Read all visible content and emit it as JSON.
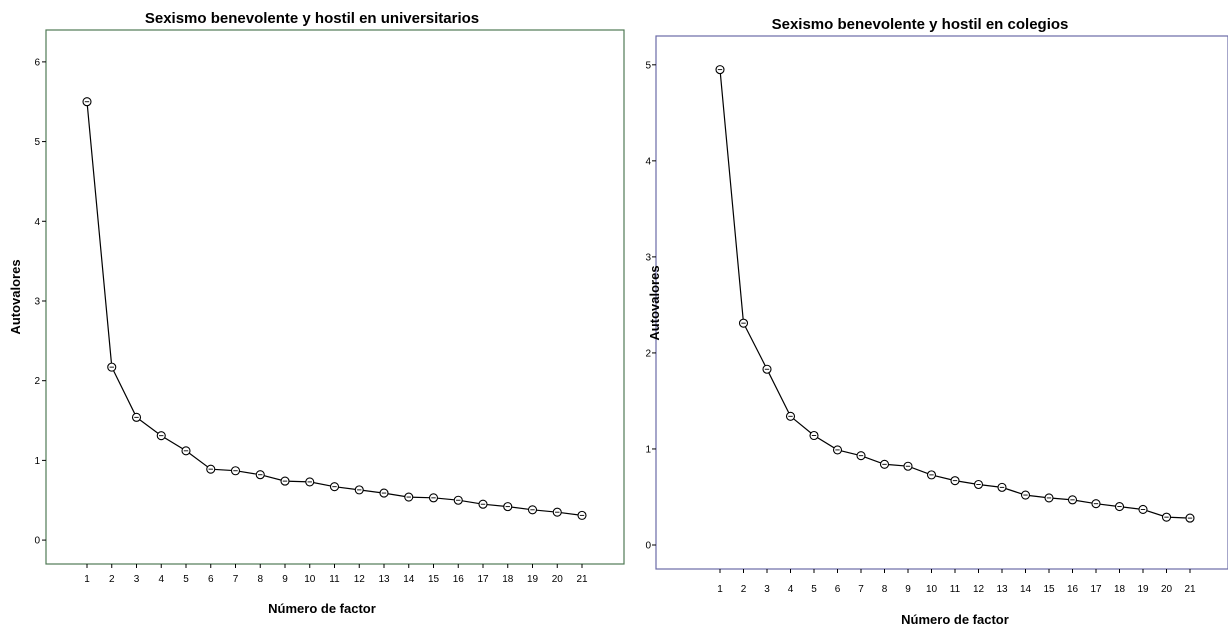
{
  "chart_data": [
    {
      "type": "line",
      "title": "Sexismo benevolente y hostil en universitarios",
      "xlabel": "Número de factor",
      "ylabel": "Autovalores",
      "x": [
        1,
        2,
        3,
        4,
        5,
        6,
        7,
        8,
        9,
        10,
        11,
        12,
        13,
        14,
        15,
        16,
        17,
        18,
        19,
        20,
        21
      ],
      "values": [
        5.5,
        2.17,
        1.54,
        1.31,
        1.12,
        0.89,
        0.87,
        0.82,
        0.74,
        0.73,
        0.67,
        0.63,
        0.59,
        0.54,
        0.53,
        0.5,
        0.45,
        0.42,
        0.38,
        0.35,
        0.31
      ],
      "yticks": [
        0,
        1,
        2,
        3,
        4,
        5,
        6
      ],
      "ylim": [
        -0.3,
        6.4
      ],
      "frame_color": "#4f7a55",
      "grid": false
    },
    {
      "type": "line",
      "title": "Sexismo benevolente y hostil en colegios",
      "xlabel": "Número de factor",
      "ylabel": "Autovalores",
      "x": [
        1,
        2,
        3,
        4,
        5,
        6,
        7,
        8,
        9,
        10,
        11,
        12,
        13,
        14,
        15,
        16,
        17,
        18,
        19,
        20,
        21
      ],
      "values": [
        4.95,
        2.31,
        1.83,
        1.34,
        1.14,
        0.99,
        0.93,
        0.84,
        0.82,
        0.73,
        0.67,
        0.63,
        0.6,
        0.52,
        0.49,
        0.47,
        0.43,
        0.4,
        0.37,
        0.29,
        0.28
      ],
      "yticks": [
        0,
        1,
        2,
        3,
        4,
        5
      ],
      "ylim": [
        -0.25,
        5.3
      ],
      "frame_color": "#6a6aa6",
      "grid": false
    }
  ]
}
